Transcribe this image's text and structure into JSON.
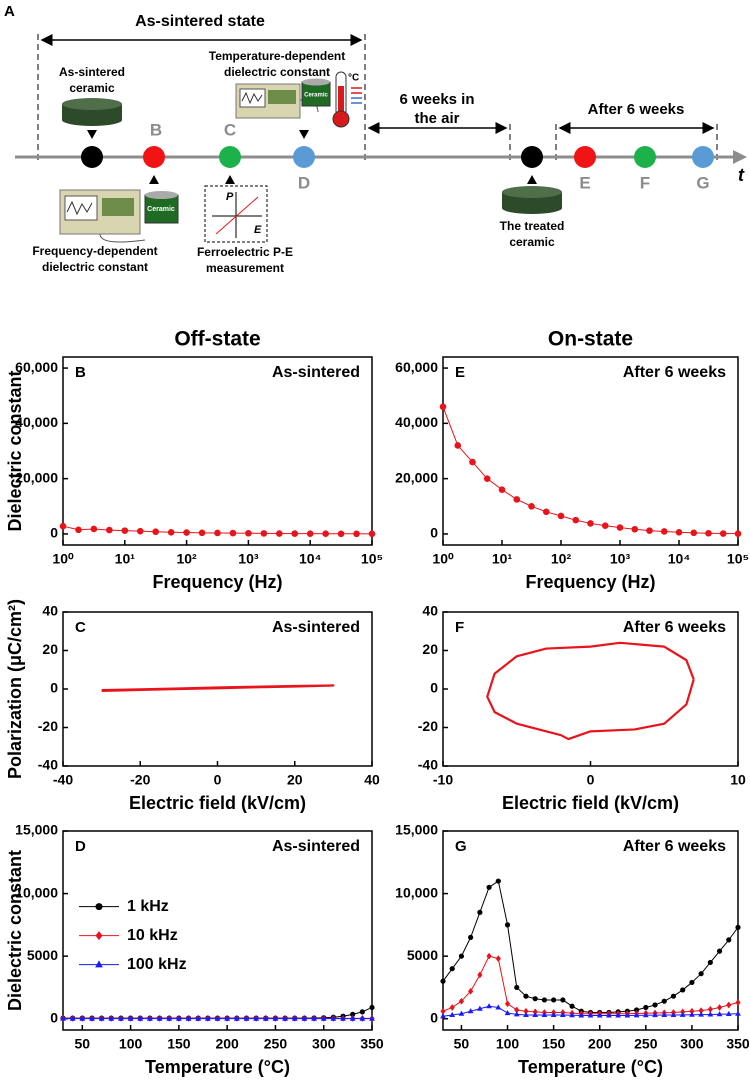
{
  "schematic": {
    "panel": "A",
    "as_sintered_state": "As-sintered state",
    "as_sintered_ceramic": [
      "As-sintered",
      "ceramic"
    ],
    "temperature_dependent": [
      "Temperature-dependent",
      "dielectric constant"
    ],
    "frequency_dependent": [
      "Frequency-dependent",
      "dielectric constant"
    ],
    "ferroelectric": [
      "Ferroelectric P-E",
      "measurement"
    ],
    "six_weeks": [
      "6 weeks in",
      "the air"
    ],
    "after_six_weeks": "After 6 weeks",
    "treated_ceramic": [
      "The treated",
      "ceramic"
    ],
    "ceramic_label": "Ceramic",
    "degree_label": "°C",
    "p_axis": "P",
    "e_axis": "E",
    "time_axis": "t",
    "step_labels": [
      "B",
      "C",
      "D",
      "E",
      "F",
      "G"
    ]
  },
  "chart_data": [
    {
      "type": "line",
      "panel": "B",
      "title": "Off-state",
      "annotation": "As-sintered",
      "ylabel": "Dielectric constant",
      "xlabel": "Frequency (Hz)",
      "xscale": "log",
      "xlim": [
        1,
        100000
      ],
      "xticks": [
        {
          "value": 1,
          "label": "10⁰"
        },
        {
          "value": 10,
          "label": "10¹"
        },
        {
          "value": 100,
          "label": "10²"
        },
        {
          "value": 1000,
          "label": "10³"
        },
        {
          "value": 10000,
          "label": "10⁴"
        },
        {
          "value": 100000,
          "label": "10⁵"
        }
      ],
      "ylim": [
        -4000,
        64000
      ],
      "yticks": [
        0,
        {
          "value": 20000,
          "label": "20,000"
        },
        {
          "value": 40000,
          "label": "40,000"
        },
        {
          "value": 60000,
          "label": "60,000"
        }
      ],
      "x": [
        1,
        1.78,
        3.16,
        5.62,
        10,
        17.8,
        31.6,
        56.2,
        100,
        178,
        316,
        562,
        1000,
        1780,
        3160,
        5620,
        10000,
        17800,
        31600,
        56200,
        100000
      ],
      "series": [
        {
          "color": "#e8141b",
          "marker": "circle",
          "values": [
            2800,
            1500,
            1800,
            1400,
            1200,
            1000,
            800,
            600,
            500,
            400,
            350,
            300,
            250,
            200,
            150,
            120,
            100,
            80,
            60,
            50,
            40
          ]
        }
      ]
    },
    {
      "type": "line",
      "panel": "E",
      "title": "On-state",
      "annotation": "After 6 weeks",
      "xlabel": "Frequency (Hz)",
      "xscale": "log",
      "xlim": [
        1,
        100000
      ],
      "xticks": [
        {
          "value": 1,
          "label": "10⁰"
        },
        {
          "value": 10,
          "label": "10¹"
        },
        {
          "value": 100,
          "label": "10²"
        },
        {
          "value": 1000,
          "label": "10³"
        },
        {
          "value": 10000,
          "label": "10⁴"
        },
        {
          "value": 100000,
          "label": "10⁵"
        }
      ],
      "ylim": [
        -4000,
        64000
      ],
      "yticks": [
        0,
        {
          "value": 20000,
          "label": "20,000"
        },
        {
          "value": 40000,
          "label": "40,000"
        },
        {
          "value": 60000,
          "label": "60,000"
        }
      ],
      "x": [
        1,
        1.78,
        3.16,
        5.62,
        10,
        17.8,
        31.6,
        56.2,
        100,
        178,
        316,
        562,
        1000,
        1780,
        3160,
        5620,
        10000,
        17800,
        31600,
        56200,
        100000
      ],
      "series": [
        {
          "color": "#e8141b",
          "marker": "circle",
          "values": [
            46000,
            32000,
            26000,
            20000,
            16000,
            12500,
            10000,
            8000,
            6500,
            5000,
            3800,
            3000,
            2300,
            1700,
            1200,
            900,
            600,
            400,
            250,
            150,
            100
          ]
        }
      ]
    },
    {
      "type": "line",
      "panel": "C",
      "annotation": "As-sintered",
      "ylabel": "Polarization (μC/cm²)",
      "xlabel": "Electric field (kV/cm)",
      "xlim": [
        -40,
        40
      ],
      "xticks": [
        -40,
        -20,
        0,
        20,
        40
      ],
      "ylim": [
        -40,
        40
      ],
      "yticks": [
        -40,
        -20,
        0,
        20,
        40
      ],
      "x": [
        -30,
        -20,
        -10,
        0,
        10,
        20,
        30,
        20,
        10,
        0,
        -10,
        -20,
        -30
      ],
      "series": [
        {
          "color": "#e8141b",
          "values": [
            -1,
            -0.5,
            0,
            0.4,
            0.9,
            1.3,
            1.8,
            1.6,
            1.2,
            0.8,
            0.3,
            -0.2,
            -0.6
          ]
        }
      ]
    },
    {
      "type": "line",
      "panel": "F",
      "annotation": "After 6 weeks",
      "xlabel": "Electric field (kV/cm)",
      "xlim": [
        -10,
        10
      ],
      "xticks": [
        -10,
        0,
        10
      ],
      "ylim": [
        -40,
        40
      ],
      "yticks": [
        -40,
        -20,
        0,
        20,
        40
      ],
      "x": [
        7,
        6.5,
        5,
        2,
        0,
        -3,
        -5,
        -6.5,
        -7,
        -6.5,
        -5,
        -2,
        -1.5,
        0,
        3,
        5,
        6.5,
        7
      ],
      "series": [
        {
          "color": "#e8141b",
          "values": [
            5,
            15,
            22,
            24,
            22,
            21,
            17,
            8,
            -4,
            -12,
            -18,
            -24,
            -26,
            -22,
            -21,
            -18,
            -8,
            5
          ]
        }
      ]
    },
    {
      "type": "line",
      "panel": "D",
      "annotation": "As-sintered",
      "ylabel": "Dielectric constant",
      "xlabel": "Temperature (°C)",
      "xlim": [
        30,
        350
      ],
      "xticks": [
        50,
        100,
        150,
        200,
        250,
        300,
        350
      ],
      "ylim": [
        -900,
        15000
      ],
      "yticks": [
        0,
        5000,
        {
          "value": 10000,
          "label": "10,000"
        },
        {
          "value": 15000,
          "label": "15,000"
        }
      ],
      "legend": "center-left",
      "x": [
        30,
        40,
        50,
        60,
        70,
        80,
        90,
        100,
        110,
        120,
        130,
        140,
        150,
        160,
        170,
        180,
        190,
        200,
        210,
        220,
        230,
        240,
        250,
        260,
        270,
        280,
        290,
        300,
        310,
        320,
        330,
        340,
        350
      ],
      "series": [
        {
          "name": "1 kHz",
          "color": "#000000",
          "marker": "circle",
          "values": [
            50,
            50,
            50,
            50,
            50,
            50,
            50,
            50,
            50,
            50,
            50,
            50,
            50,
            50,
            50,
            50,
            50,
            50,
            50,
            50,
            50,
            50,
            50,
            50,
            50,
            50,
            60,
            80,
            120,
            200,
            350,
            550,
            900
          ]
        },
        {
          "name": "10 kHz",
          "color": "#e8141b",
          "marker": "diamond",
          "values": [
            30,
            30,
            30,
            30,
            30,
            30,
            30,
            30,
            30,
            30,
            30,
            30,
            30,
            30,
            30,
            30,
            30,
            30,
            30,
            30,
            30,
            30,
            30,
            30,
            30,
            30,
            30,
            30,
            30,
            30,
            30,
            30,
            30
          ]
        },
        {
          "name": "100 kHz",
          "color": "#1a1aff",
          "marker": "triangle",
          "values": [
            10,
            10,
            10,
            10,
            10,
            10,
            10,
            10,
            10,
            10,
            10,
            10,
            10,
            10,
            10,
            10,
            10,
            10,
            10,
            10,
            10,
            10,
            10,
            10,
            10,
            10,
            10,
            10,
            10,
            10,
            10,
            10,
            10
          ]
        }
      ]
    },
    {
      "type": "line",
      "panel": "G",
      "annotation": "After 6 weeks",
      "xlabel": "Temperature (°C)",
      "xlim": [
        30,
        350
      ],
      "xticks": [
        50,
        100,
        150,
        200,
        250,
        300,
        350
      ],
      "ylim": [
        -900,
        15000
      ],
      "yticks": [
        0,
        5000,
        {
          "value": 10000,
          "label": "10,000"
        },
        {
          "value": 15000,
          "label": "15,000"
        }
      ],
      "x": [
        30,
        40,
        50,
        60,
        70,
        80,
        90,
        100,
        110,
        120,
        130,
        140,
        150,
        160,
        170,
        180,
        190,
        200,
        210,
        220,
        230,
        240,
        250,
        260,
        270,
        280,
        290,
        300,
        310,
        320,
        330,
        340,
        350
      ],
      "series": [
        {
          "color": "#000000",
          "marker": "circle",
          "values": [
            3000,
            4000,
            5000,
            6500,
            8500,
            10500,
            11000,
            7500,
            2500,
            1800,
            1600,
            1500,
            1500,
            1500,
            1000,
            600,
            500,
            500,
            500,
            550,
            600,
            700,
            900,
            1100,
            1400,
            1800,
            2300,
            2900,
            3600,
            4500,
            5400,
            6300,
            7300
          ]
        },
        {
          "color": "#e8141b",
          "marker": "diamond",
          "values": [
            600,
            900,
            1400,
            2200,
            3500,
            5000,
            4800,
            1200,
            700,
            600,
            550,
            500,
            500,
            500,
            450,
            400,
            400,
            400,
            400,
            400,
            400,
            420,
            440,
            460,
            480,
            500,
            550,
            600,
            650,
            750,
            900,
            1100,
            1300
          ]
        },
        {
          "color": "#1a1aff",
          "marker": "triangle",
          "values": [
            200,
            300,
            400,
            600,
            800,
            1000,
            900,
            450,
            350,
            300,
            300,
            300,
            300,
            300,
            280,
            260,
            260,
            260,
            260,
            260,
            260,
            270,
            280,
            290,
            300,
            300,
            310,
            320,
            330,
            340,
            360,
            380,
            400
          ]
        }
      ]
    }
  ]
}
